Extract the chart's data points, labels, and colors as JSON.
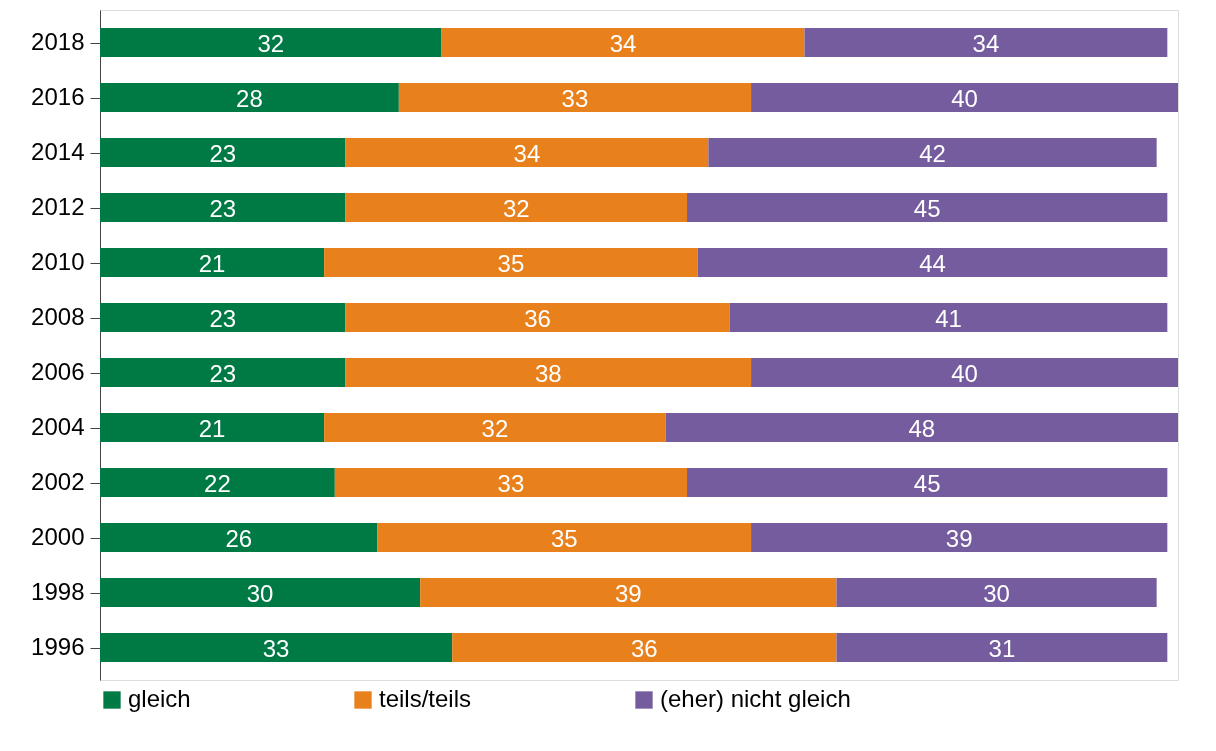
{
  "chart_data": {
    "type": "bar",
    "orientation": "horizontal",
    "stacked": true,
    "data_labels": true,
    "legend": "bottom",
    "categories": [
      "2018",
      "2016",
      "2014",
      "2012",
      "2010",
      "2008",
      "2006",
      "2004",
      "2002",
      "2000",
      "1998",
      "1996"
    ],
    "series": [
      {
        "name": "gleich",
        "color": "#007a45",
        "values": [
          32,
          28,
          23,
          23,
          21,
          23,
          23,
          21,
          22,
          26,
          30,
          33
        ]
      },
      {
        "name": "teils/teils",
        "color": "#e8801c",
        "values": [
          34,
          33,
          34,
          32,
          35,
          36,
          38,
          32,
          33,
          35,
          39,
          36
        ]
      },
      {
        "name": "(eher) nicht gleich",
        "color": "#755c9e",
        "values": [
          34,
          40,
          42,
          45,
          44,
          41,
          40,
          48,
          45,
          39,
          30,
          31
        ]
      }
    ]
  }
}
